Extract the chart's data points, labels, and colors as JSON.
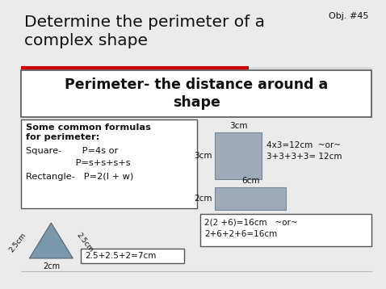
{
  "bg_color": "#ebebeb",
  "title_main": "Determine the perimeter of a\ncomplex shape",
  "title_obj": "Obj. #45",
  "red_line_color": "#cc0000",
  "banner_text": "Perimeter- the distance around a\nshape",
  "banner_bg": "#ffffff",
  "banner_border": "#555555",
  "square_color": "#9eaab8",
  "rect_color": "#9eaab8",
  "triangle_color": "#7b98aa",
  "square_label_top": "3cm",
  "square_label_left": "3cm",
  "square_calc": "4x3=12cm  ~or~\n3+3+3+3= 12cm",
  "rect_label_top": "6cm",
  "rect_label_left": "2cm",
  "rect_calc": "2(2 +6)=16cm   ~or~\n2+6+2+6=16cm",
  "tri_label_left": "2.5cm",
  "tri_label_right": "2.5cm",
  "tri_label_bottom": "2cm",
  "tri_calc": "2.5+2.5+2=7cm",
  "formulas_bold": "Some common formulas\nfor perimeter:",
  "sq_line1": "Square-       P=4s or",
  "sq_line2": "                 P=s+s+s+s",
  "rect_line": "Rectangle-   P=2(l + w)"
}
